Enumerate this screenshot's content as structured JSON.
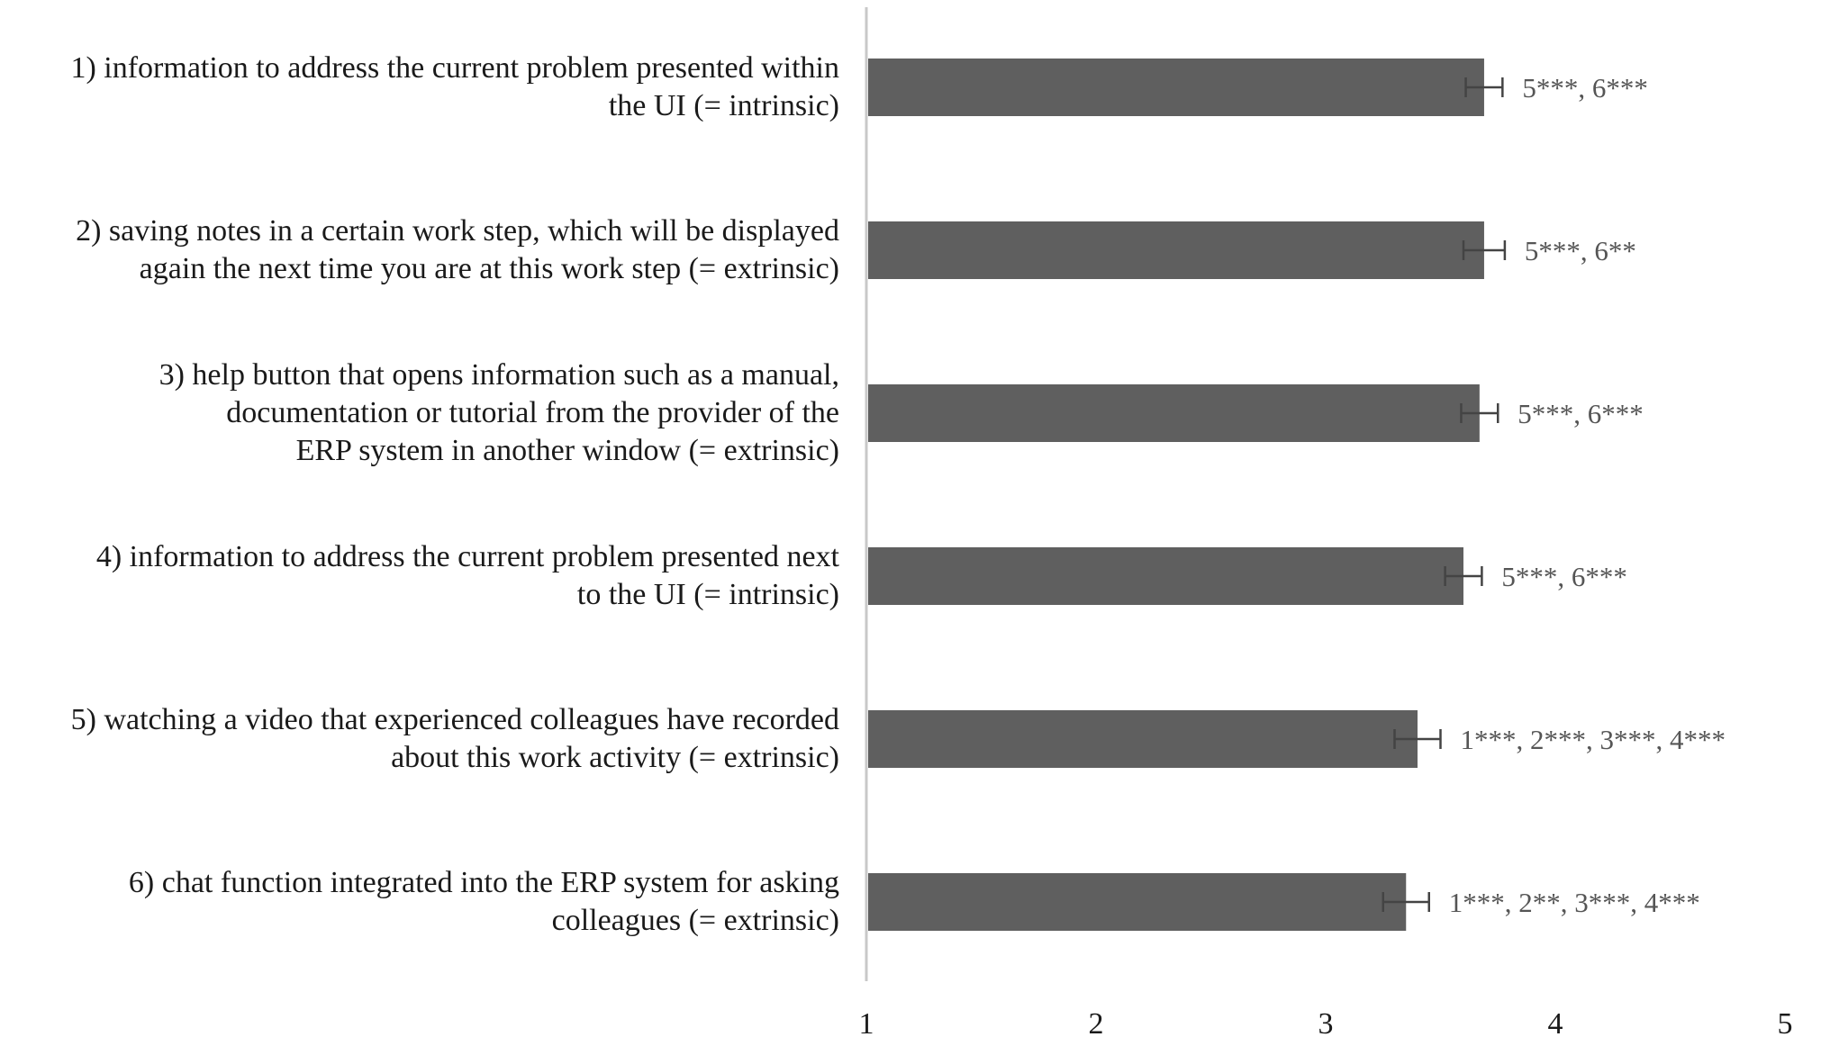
{
  "chart_data": {
    "type": "bar",
    "orientation": "horizontal",
    "xlim": [
      1,
      5
    ],
    "x_ticks": [
      "1",
      "2",
      "3",
      "4",
      "5"
    ],
    "categories": [
      "1) information to address the current problem presented within the UI (= intrinsic)",
      "2) saving notes in a certain work step, which will be displayed again the next time you are at this work step (= extrinsic)",
      "3) help button that opens information such as a manual, documentation or tutorial from the provider of the ERP system in another window (= extrinsic)",
      "4) information to address the current problem presented next to the UI (= intrinsic)",
      "5) watching a video that experienced colleagues have recorded about this work activity (= extrinsic)",
      "6) chat function integrated into the ERP system for asking colleagues (= extrinsic)"
    ],
    "category_lines": [
      [
        "1) information to address the current problem presented within",
        "the UI (= intrinsic)"
      ],
      [
        "2) saving notes in a certain work step, which will be displayed",
        "again the next time you are at this work step (= extrinsic)"
      ],
      [
        "3) help button that opens information such as a manual,",
        "documentation or tutorial from the provider of the",
        "ERP system in another window (= extrinsic)"
      ],
      [
        "4) information to address the current problem presented next",
        "to the UI (= intrinsic)"
      ],
      [
        "5) watching a video that experienced colleagues have recorded",
        "about this work activity (= extrinsic)"
      ],
      [
        "6) chat function integrated into the ERP system for asking",
        "colleagues (= extrinsic)"
      ]
    ],
    "values": [
      3.69,
      3.69,
      3.67,
      3.6,
      3.4,
      3.35
    ],
    "errors": [
      0.08,
      0.09,
      0.08,
      0.08,
      0.1,
      0.1
    ],
    "annotations": [
      "5***, 6***",
      "5***, 6**",
      "5***, 6***",
      "5***, 6***",
      "1***, 2***, 3***, 4***",
      "1***, 2**, 3***, 4***"
    ],
    "bar_color": "#5f5f5f",
    "axis_color": "#c8c8c8",
    "grid": false
  }
}
